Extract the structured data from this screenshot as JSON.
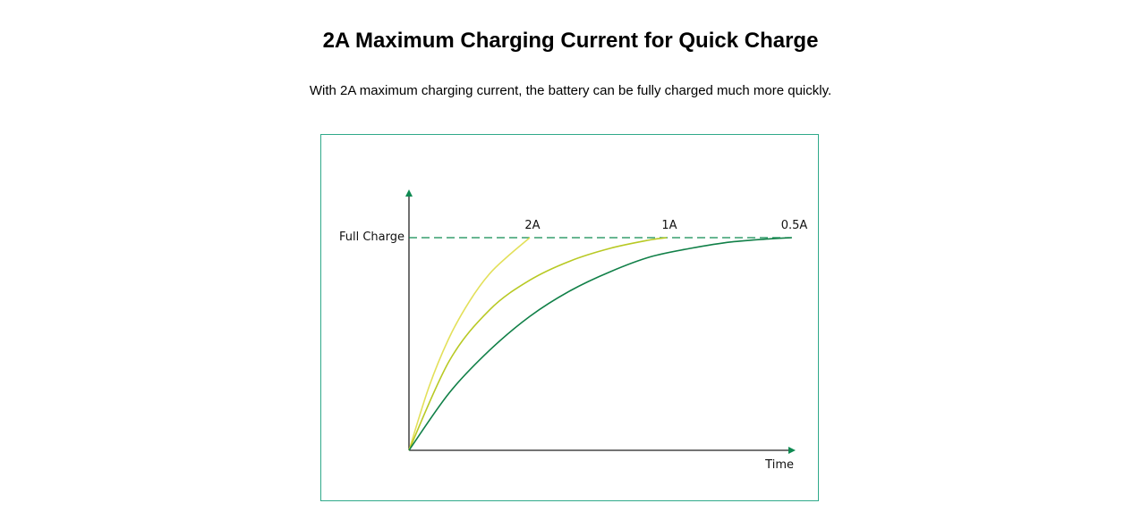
{
  "header": {
    "title": "2A Maximum Charging Current for Quick Charge",
    "subtitle": "With 2A maximum charging current, the battery can be fully charged much more quickly."
  },
  "chart_data": {
    "type": "line",
    "xlabel": "Time",
    "ylabel": "",
    "reference_line": {
      "label": "Full Charge",
      "style": "dashed",
      "color": "#0e8a52"
    },
    "grid": false,
    "series": [
      {
        "name": "2A",
        "color": "#e3e05a",
        "x": [
          0,
          0.05,
          0.1,
          0.15,
          0.2,
          0.25,
          0.3
        ],
        "y": [
          0,
          0.3,
          0.53,
          0.7,
          0.83,
          0.92,
          1.0
        ]
      },
      {
        "name": "1A",
        "color": "#b8c924",
        "x": [
          0,
          0.1,
          0.2,
          0.3,
          0.4,
          0.5,
          0.6,
          0.64
        ],
        "y": [
          0,
          0.42,
          0.66,
          0.8,
          0.89,
          0.95,
          0.99,
          1.0
        ]
      },
      {
        "name": "0.5A",
        "color": "#118048",
        "x": [
          0,
          0.1,
          0.2,
          0.3,
          0.4,
          0.5,
          0.6,
          0.7,
          0.8,
          0.9,
          0.95
        ],
        "y": [
          0,
          0.27,
          0.47,
          0.63,
          0.75,
          0.84,
          0.91,
          0.95,
          0.98,
          0.995,
          1.0
        ]
      }
    ],
    "axis_color": "#0e8a52"
  }
}
